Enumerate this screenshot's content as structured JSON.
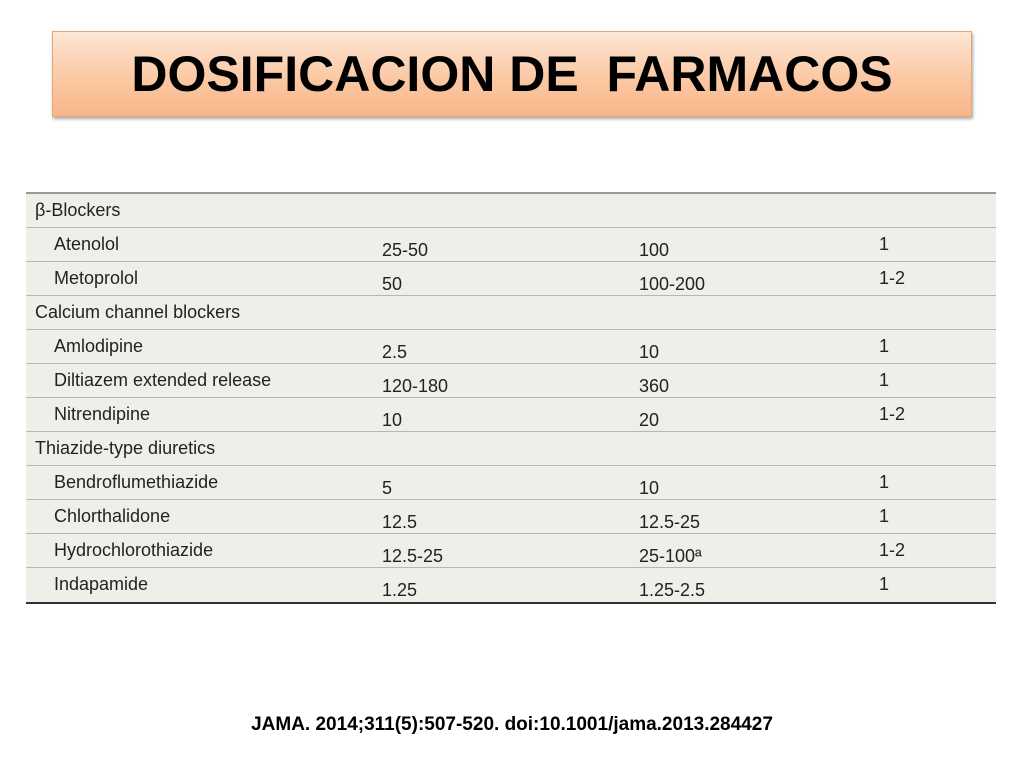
{
  "title": "DOSIFICACION DE  FARMACOS",
  "groups": [
    {
      "category": "β-Blockers",
      "drugs": [
        {
          "name": "Atenolol",
          "initial": "25-50",
          "target": "100",
          "doses": "1"
        },
        {
          "name": "Metoprolol",
          "initial": "50",
          "target": "100-200",
          "doses": "1-2"
        }
      ]
    },
    {
      "category": "Calcium channel blockers",
      "drugs": [
        {
          "name": "Amlodipine",
          "initial": "2.5",
          "target": "10",
          "doses": "1"
        },
        {
          "name": "Diltiazem extended release",
          "initial": "120-180",
          "target": "360",
          "doses": "1"
        },
        {
          "name": "Nitrendipine",
          "initial": "10",
          "target": "20",
          "doses": "1-2"
        }
      ]
    },
    {
      "category": "Thiazide-type diuretics",
      "drugs": [
        {
          "name": "Bendroflumethiazide",
          "initial": "5",
          "target": "10",
          "doses": "1"
        },
        {
          "name": "Chlorthalidone",
          "initial": "12.5",
          "target": "12.5-25",
          "doses": "1"
        },
        {
          "name": "Hydrochlorothiazide",
          "initial": "12.5-25",
          "target": "25-100ª",
          "doses": "1-2"
        },
        {
          "name": "Indapamide",
          "initial": "1.25",
          "target": "1.25-2.5",
          "doses": "1"
        }
      ]
    }
  ],
  "citation": "JAMA. 2014;311(5):507-520. doi:10.1001/jama.2013.284427"
}
